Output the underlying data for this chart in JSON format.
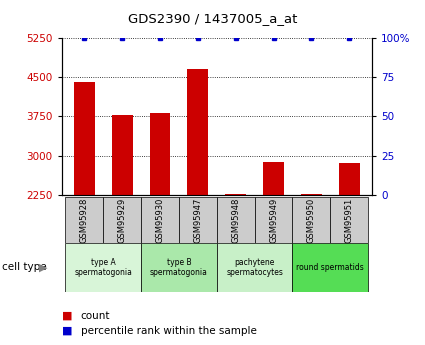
{
  "title": "GDS2390 / 1437005_a_at",
  "samples": [
    "GSM95928",
    "GSM95929",
    "GSM95930",
    "GSM95947",
    "GSM95948",
    "GSM95949",
    "GSM95950",
    "GSM95951"
  ],
  "counts": [
    4400,
    3770,
    3820,
    4650,
    2260,
    2870,
    2265,
    2860
  ],
  "percentile_ranks": [
    100,
    100,
    100,
    100,
    100,
    100,
    100,
    100
  ],
  "ylim_left": [
    2250,
    5250
  ],
  "yticks_left": [
    2250,
    3000,
    3750,
    4500,
    5250
  ],
  "ylim_right": [
    0,
    100
  ],
  "yticks_right": [
    0,
    25,
    50,
    75,
    100
  ],
  "cell_types": [
    {
      "label": "type A\nspermatogonia",
      "color": "#d8f5d8",
      "start": 0,
      "end": 2
    },
    {
      "label": "type B\nspermatogonia",
      "color": "#aae8aa",
      "start": 2,
      "end": 4
    },
    {
      "label": "pachytene\nspermatocytes",
      "color": "#c8f0c8",
      "start": 4,
      "end": 6
    },
    {
      "label": "round spermatids",
      "color": "#55dd55",
      "start": 6,
      "end": 8
    }
  ],
  "bar_color": "#cc0000",
  "dot_color": "#0000cc",
  "bar_width": 0.55,
  "background_color": "#ffffff",
  "sample_box_color": "#cccccc"
}
